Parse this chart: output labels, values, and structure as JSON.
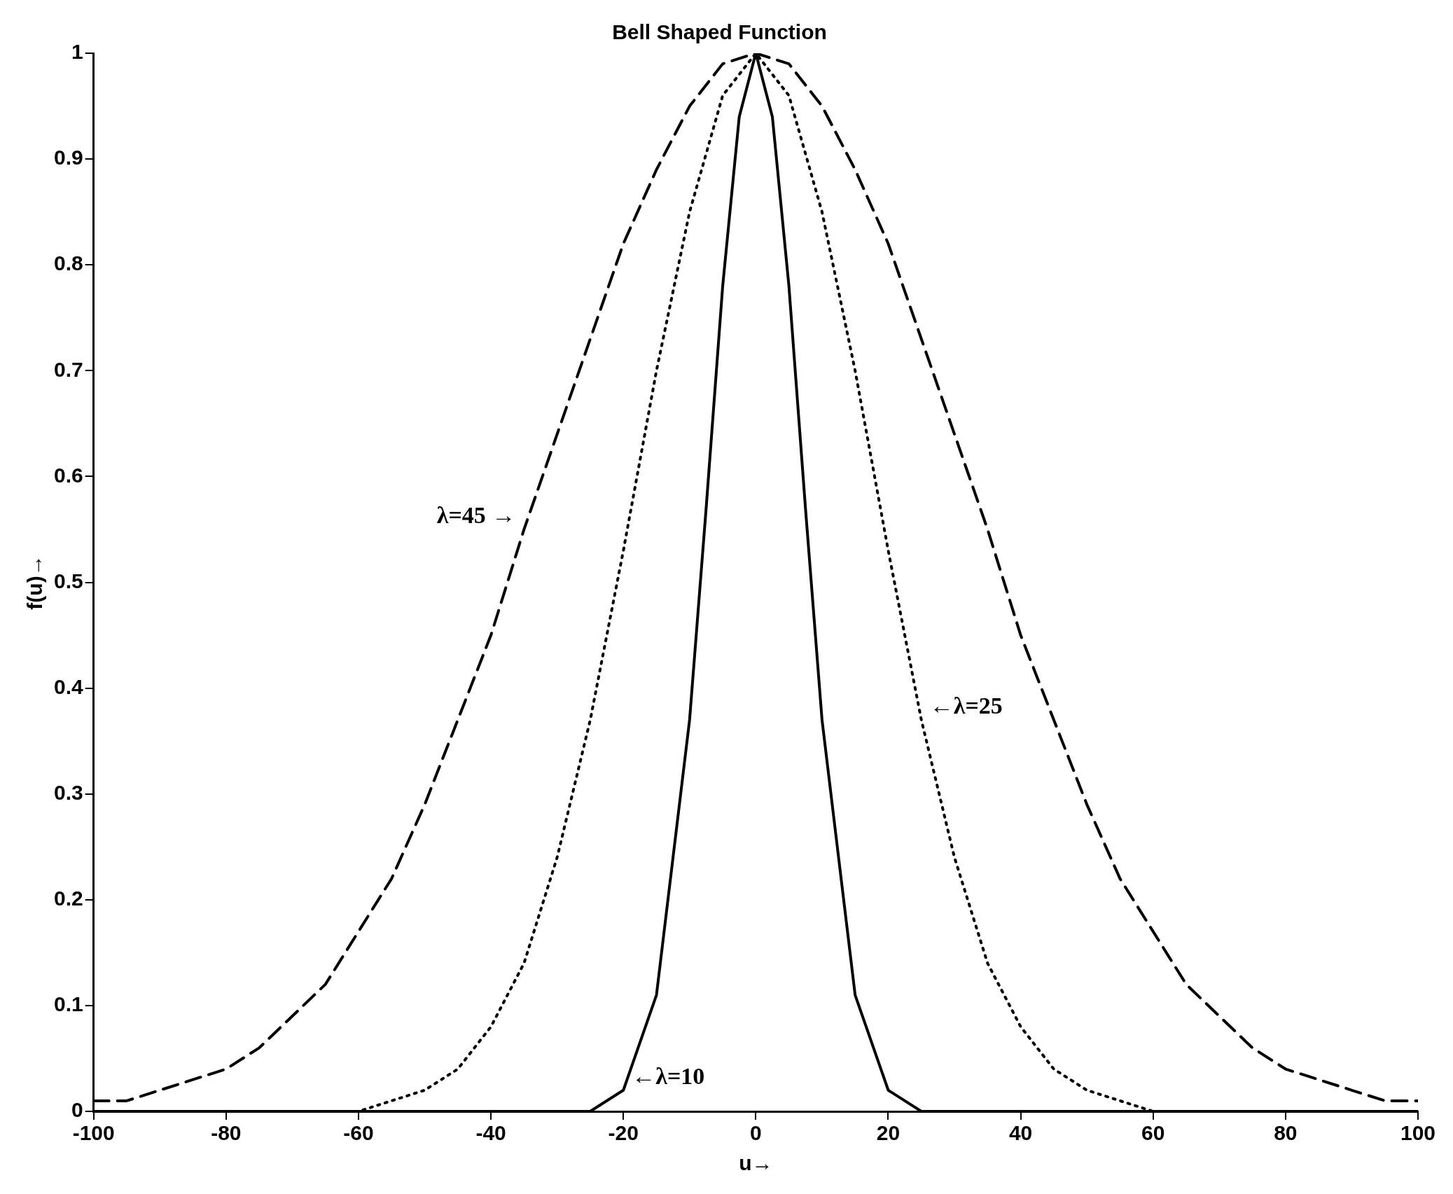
{
  "chart_data": {
    "type": "line",
    "title": "Bell Shaped Function",
    "xlabel": "u→",
    "ylabel": "f(u)→",
    "xlim": [
      -100,
      100
    ],
    "ylim": [
      0,
      1
    ],
    "xticks": [
      -100,
      -80,
      -60,
      -40,
      -20,
      0,
      20,
      40,
      60,
      80,
      100
    ],
    "yticks": [
      0,
      0.1,
      0.2,
      0.3,
      0.4,
      0.5,
      0.6,
      0.7,
      0.8,
      0.9,
      1
    ],
    "grid": false,
    "legend": false,
    "series": [
      {
        "color": "#000000",
        "line_style": "solid",
        "x": [
          -100,
          -30,
          -25,
          -20,
          -15,
          -10,
          -7.5,
          -5,
          -2.5,
          0,
          2.5,
          5,
          7.5,
          10,
          15,
          20,
          25,
          30,
          100
        ],
        "values": [
          0,
          0,
          0,
          0.02,
          0.11,
          0.37,
          0.57,
          0.78,
          0.94,
          1,
          0.94,
          0.78,
          0.57,
          0.37,
          0.11,
          0.02,
          0,
          0,
          0
        ]
      },
      {
        "color": "#000000",
        "line_style": "dotted",
        "x": [
          -100,
          -60,
          -55,
          -50,
          -45,
          -40,
          -35,
          -30,
          -25,
          -20,
          -15,
          -10,
          -5,
          0,
          5,
          10,
          15,
          20,
          25,
          30,
          35,
          40,
          45,
          50,
          55,
          60,
          100
        ],
        "values": [
          0,
          0,
          0.01,
          0.02,
          0.04,
          0.08,
          0.14,
          0.24,
          0.37,
          0.53,
          0.7,
          0.85,
          0.96,
          1,
          0.96,
          0.85,
          0.7,
          0.53,
          0.37,
          0.24,
          0.14,
          0.08,
          0.04,
          0.02,
          0.01,
          0,
          0
        ]
      },
      {
        "color": "#000000",
        "line_style": "dashed",
        "x": [
          -100,
          -95,
          -90,
          -85,
          -80,
          -75,
          -70,
          -65,
          -60,
          -55,
          -50,
          -45,
          -40,
          -35,
          -30,
          -25,
          -20,
          -15,
          -10,
          -5,
          0,
          5,
          10,
          15,
          20,
          25,
          30,
          35,
          40,
          45,
          50,
          55,
          60,
          65,
          70,
          75,
          80,
          85,
          90,
          95,
          100
        ],
        "values": [
          0.01,
          0.01,
          0.02,
          0.03,
          0.04,
          0.06,
          0.09,
          0.12,
          0.17,
          0.22,
          0.29,
          0.37,
          0.45,
          0.55,
          0.64,
          0.73,
          0.82,
          0.89,
          0.95,
          0.99,
          1,
          0.99,
          0.95,
          0.89,
          0.82,
          0.73,
          0.64,
          0.55,
          0.45,
          0.37,
          0.29,
          0.22,
          0.17,
          0.12,
          0.09,
          0.06,
          0.04,
          0.03,
          0.02,
          0.01,
          0.01
        ]
      }
    ],
    "annotations": [
      {
        "text": "λ=45 →",
        "x": -35,
        "y": 0.55
      },
      {
        "text": "←λ=25",
        "x": 25,
        "y": 0.37
      },
      {
        "text": "←λ=10",
        "x": -20,
        "y": 0.02
      }
    ]
  }
}
